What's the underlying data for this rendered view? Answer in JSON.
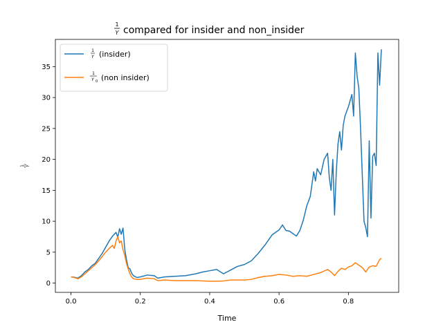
{
  "chart_data": {
    "type": "line",
    "title": {
      "frac_num": "1",
      "frac_den": "Y",
      "text": "compared for insider and non_insider"
    },
    "xlabel": "Time",
    "ylabel": {
      "frac_num": "1",
      "frac_den": "Y"
    },
    "xlim": [
      -0.045,
      0.945
    ],
    "ylim": [
      -1.5,
      39.4
    ],
    "xticks": [
      0.0,
      0.2,
      0.4,
      0.6,
      0.8
    ],
    "xtick_labels": [
      "0.0",
      "0.2",
      "0.4",
      "0.6",
      "0.8"
    ],
    "yticks": [
      0,
      5,
      10,
      15,
      20,
      25,
      30,
      35
    ],
    "ytick_labels": [
      "0",
      "5",
      "10",
      "15",
      "20",
      "25",
      "30",
      "35"
    ],
    "legend_position": "top-left",
    "series": [
      {
        "name": "(insider)",
        "legend_frac_num": "1",
        "legend_frac_den": "Y",
        "legend_frac_sub": "",
        "color": "#1f77b4",
        "points": [
          [
            0.0,
            1.0
          ],
          [
            0.01,
            0.95
          ],
          [
            0.02,
            0.8
          ],
          [
            0.03,
            1.2
          ],
          [
            0.04,
            1.8
          ],
          [
            0.05,
            2.2
          ],
          [
            0.06,
            2.8
          ],
          [
            0.07,
            3.2
          ],
          [
            0.08,
            4.0
          ],
          [
            0.09,
            4.8
          ],
          [
            0.1,
            5.8
          ],
          [
            0.11,
            6.8
          ],
          [
            0.12,
            7.6
          ],
          [
            0.13,
            8.2
          ],
          [
            0.135,
            7.4
          ],
          [
            0.14,
            8.8
          ],
          [
            0.145,
            7.9
          ],
          [
            0.15,
            8.9
          ],
          [
            0.155,
            5.5
          ],
          [
            0.16,
            3.8
          ],
          [
            0.165,
            2.5
          ],
          [
            0.17,
            2.3
          ],
          [
            0.175,
            1.6
          ],
          [
            0.18,
            1.2
          ],
          [
            0.19,
            0.9
          ],
          [
            0.2,
            1.0
          ],
          [
            0.22,
            1.3
          ],
          [
            0.24,
            1.2
          ],
          [
            0.25,
            0.8
          ],
          [
            0.27,
            1.0
          ],
          [
            0.3,
            1.1
          ],
          [
            0.33,
            1.2
          ],
          [
            0.36,
            1.5
          ],
          [
            0.38,
            1.8
          ],
          [
            0.4,
            2.0
          ],
          [
            0.42,
            2.2
          ],
          [
            0.44,
            1.5
          ],
          [
            0.46,
            2.1
          ],
          [
            0.48,
            2.7
          ],
          [
            0.5,
            3.0
          ],
          [
            0.52,
            3.6
          ],
          [
            0.54,
            4.8
          ],
          [
            0.56,
            6.2
          ],
          [
            0.58,
            7.8
          ],
          [
            0.6,
            8.6
          ],
          [
            0.61,
            9.4
          ],
          [
            0.62,
            8.5
          ],
          [
            0.63,
            8.4
          ],
          [
            0.64,
            8.0
          ],
          [
            0.65,
            7.6
          ],
          [
            0.66,
            8.5
          ],
          [
            0.67,
            10.2
          ],
          [
            0.68,
            12.5
          ],
          [
            0.69,
            14.0
          ],
          [
            0.7,
            18.0
          ],
          [
            0.705,
            16.5
          ],
          [
            0.71,
            18.5
          ],
          [
            0.72,
            17.5
          ],
          [
            0.73,
            20.0
          ],
          [
            0.74,
            21.0
          ],
          [
            0.745,
            17.0
          ],
          [
            0.75,
            15.0
          ],
          [
            0.755,
            20.0
          ],
          [
            0.76,
            11.0
          ],
          [
            0.765,
            18.0
          ],
          [
            0.77,
            22.5
          ],
          [
            0.775,
            24.5
          ],
          [
            0.78,
            21.5
          ],
          [
            0.785,
            25.5
          ],
          [
            0.79,
            27.0
          ],
          [
            0.8,
            28.5
          ],
          [
            0.81,
            30.5
          ],
          [
            0.815,
            27.0
          ],
          [
            0.82,
            37.2
          ],
          [
            0.825,
            33.5
          ],
          [
            0.83,
            31.5
          ],
          [
            0.835,
            25.0
          ],
          [
            0.84,
            17.5
          ],
          [
            0.845,
            10.0
          ],
          [
            0.85,
            9.0
          ],
          [
            0.855,
            7.5
          ],
          [
            0.86,
            23.0
          ],
          [
            0.865,
            10.5
          ],
          [
            0.87,
            20.5
          ],
          [
            0.875,
            21.0
          ],
          [
            0.88,
            19.0
          ],
          [
            0.885,
            37.2
          ],
          [
            0.89,
            32.0
          ],
          [
            0.895,
            37.8
          ]
        ]
      },
      {
        "name": "(non insider)",
        "legend_frac_num": "1",
        "legend_frac_den": "Y",
        "legend_frac_sub": "0",
        "color": "#ff7f0e",
        "points": [
          [
            0.0,
            1.0
          ],
          [
            0.01,
            0.9
          ],
          [
            0.02,
            0.7
          ],
          [
            0.03,
            1.0
          ],
          [
            0.04,
            1.5
          ],
          [
            0.05,
            2.0
          ],
          [
            0.06,
            2.5
          ],
          [
            0.07,
            3.0
          ],
          [
            0.08,
            3.6
          ],
          [
            0.09,
            4.3
          ],
          [
            0.1,
            5.0
          ],
          [
            0.11,
            5.6
          ],
          [
            0.12,
            6.1
          ],
          [
            0.125,
            5.6
          ],
          [
            0.13,
            6.8
          ],
          [
            0.135,
            7.5
          ],
          [
            0.14,
            6.5
          ],
          [
            0.145,
            6.8
          ],
          [
            0.15,
            5.4
          ],
          [
            0.155,
            4.5
          ],
          [
            0.16,
            3.2
          ],
          [
            0.165,
            2.3
          ],
          [
            0.17,
            1.5
          ],
          [
            0.175,
            1.0
          ],
          [
            0.18,
            0.7
          ],
          [
            0.19,
            0.6
          ],
          [
            0.2,
            0.6
          ],
          [
            0.22,
            0.8
          ],
          [
            0.24,
            0.7
          ],
          [
            0.25,
            0.4
          ],
          [
            0.27,
            0.5
          ],
          [
            0.3,
            0.4
          ],
          [
            0.33,
            0.4
          ],
          [
            0.36,
            0.4
          ],
          [
            0.4,
            0.3
          ],
          [
            0.42,
            0.3
          ],
          [
            0.44,
            0.35
          ],
          [
            0.46,
            0.5
          ],
          [
            0.48,
            0.5
          ],
          [
            0.5,
            0.5
          ],
          [
            0.52,
            0.6
          ],
          [
            0.54,
            0.9
          ],
          [
            0.56,
            1.1
          ],
          [
            0.58,
            1.2
          ],
          [
            0.6,
            1.4
          ],
          [
            0.62,
            1.3
          ],
          [
            0.64,
            1.1
          ],
          [
            0.66,
            1.2
          ],
          [
            0.68,
            1.1
          ],
          [
            0.7,
            1.4
          ],
          [
            0.72,
            1.7
          ],
          [
            0.74,
            2.2
          ],
          [
            0.75,
            1.8
          ],
          [
            0.76,
            1.2
          ],
          [
            0.77,
            1.9
          ],
          [
            0.78,
            2.4
          ],
          [
            0.79,
            2.2
          ],
          [
            0.8,
            2.6
          ],
          [
            0.81,
            2.8
          ],
          [
            0.82,
            3.3
          ],
          [
            0.83,
            2.9
          ],
          [
            0.84,
            2.5
          ],
          [
            0.85,
            1.8
          ],
          [
            0.86,
            2.6
          ],
          [
            0.87,
            2.8
          ],
          [
            0.88,
            2.7
          ],
          [
            0.89,
            3.8
          ],
          [
            0.895,
            4.0
          ]
        ]
      }
    ]
  }
}
